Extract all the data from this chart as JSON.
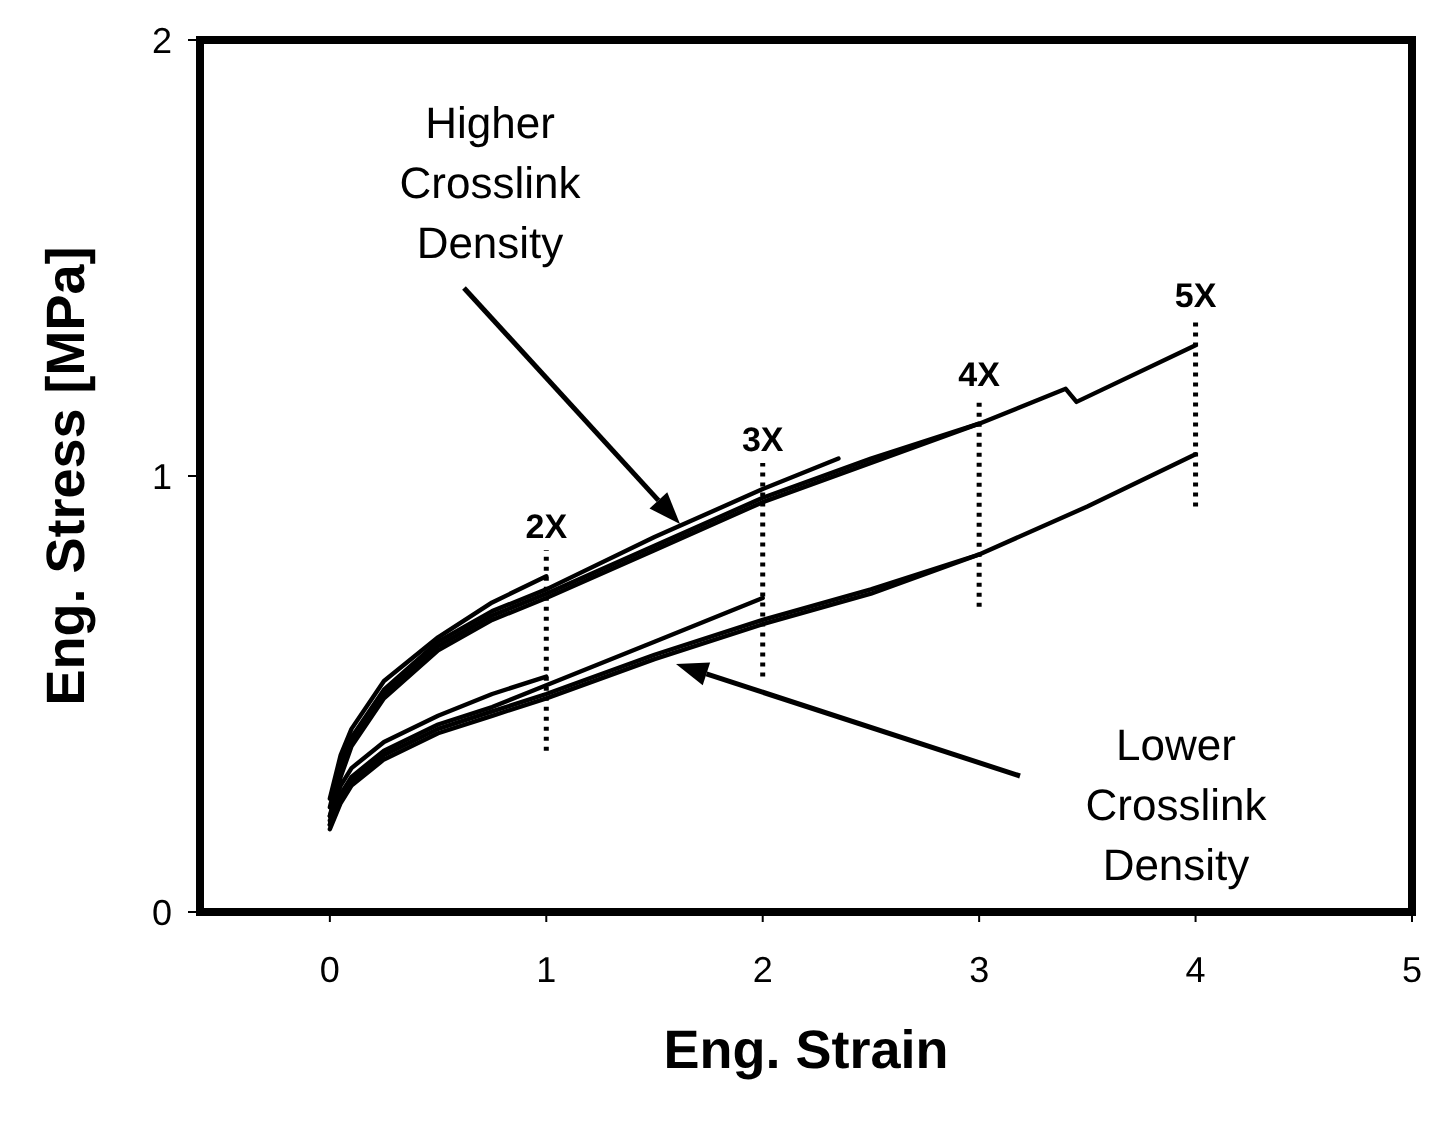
{
  "chart_data": {
    "type": "line",
    "xlabel": "Eng. Strain",
    "ylabel": "Eng. Stress [MPa]",
    "xlim": [
      -0.6,
      5
    ],
    "ylim": [
      0,
      2
    ],
    "xticks": [
      0,
      1,
      2,
      3,
      4,
      5
    ],
    "yticks": [
      0,
      1,
      2
    ],
    "grid": false,
    "marker": "none",
    "line_style": "solid",
    "series": [
      {
        "color": "#000000",
        "x": [
          0,
          0.05,
          0.1,
          0.25,
          0.5,
          0.75,
          1
        ],
        "values": [
          0.26,
          0.36,
          0.42,
          0.53,
          0.63,
          0.71,
          0.77
        ]
      },
      {
        "color": "#000000",
        "x": [
          0,
          0.05,
          0.1,
          0.25,
          0.5,
          0.75,
          1,
          1.5,
          2,
          2.35
        ],
        "values": [
          0.24,
          0.34,
          0.4,
          0.51,
          0.62,
          0.69,
          0.74,
          0.86,
          0.97,
          1.04
        ]
      },
      {
        "color": "#000000",
        "x": [
          0,
          0.05,
          0.1,
          0.25,
          0.5,
          0.75,
          1,
          1.5,
          2,
          2.5,
          3
        ],
        "values": [
          0.22,
          0.32,
          0.39,
          0.5,
          0.61,
          0.68,
          0.73,
          0.84,
          0.95,
          1.04,
          1.12
        ]
      },
      {
        "color": "#000000",
        "x": [
          0,
          0.05,
          0.1,
          0.25,
          0.5,
          0.75,
          1,
          1.5,
          2,
          2.5,
          3,
          3.4,
          3.45,
          4
        ],
        "values": [
          0.2,
          0.31,
          0.38,
          0.49,
          0.6,
          0.67,
          0.72,
          0.83,
          0.94,
          1.03,
          1.12,
          1.2,
          1.17,
          1.3
        ]
      },
      {
        "color": "#000000",
        "x": [
          0,
          0.05,
          0.1,
          0.25,
          0.5,
          0.75,
          1
        ],
        "values": [
          0.22,
          0.29,
          0.33,
          0.39,
          0.45,
          0.5,
          0.54
        ]
      },
      {
        "color": "#000000",
        "x": [
          0,
          0.05,
          0.1,
          0.25,
          0.5,
          0.75,
          1,
          1.5,
          2
        ],
        "values": [
          0.21,
          0.27,
          0.31,
          0.37,
          0.43,
          0.47,
          0.52,
          0.62,
          0.72
        ]
      },
      {
        "color": "#000000",
        "x": [
          0,
          0.05,
          0.1,
          0.25,
          0.5,
          0.75,
          1,
          1.5,
          2,
          2.5,
          3
        ],
        "values": [
          0.2,
          0.26,
          0.3,
          0.36,
          0.42,
          0.46,
          0.5,
          0.59,
          0.67,
          0.74,
          0.82
        ]
      },
      {
        "color": "#000000",
        "x": [
          0,
          0.05,
          0.1,
          0.25,
          0.5,
          0.75,
          1,
          1.5,
          2,
          2.5,
          3,
          3.5,
          4
        ],
        "values": [
          0.19,
          0.25,
          0.29,
          0.35,
          0.41,
          0.45,
          0.49,
          0.58,
          0.66,
          0.73,
          0.82,
          0.93,
          1.05
        ]
      }
    ],
    "ref_lines": [
      {
        "axis": "x",
        "value": 1,
        "label": "2X",
        "line_style": "dotted"
      },
      {
        "axis": "x",
        "value": 2,
        "label": "3X",
        "line_style": "dotted"
      },
      {
        "axis": "x",
        "value": 3,
        "label": "4X",
        "line_style": "dotted"
      },
      {
        "axis": "x",
        "value": 4,
        "label": "5X",
        "line_style": "dotted"
      }
    ],
    "annotations": [
      "Higher\nCrosslink\nDensity",
      "Lower\nCrosslink\nDensity"
    ]
  }
}
